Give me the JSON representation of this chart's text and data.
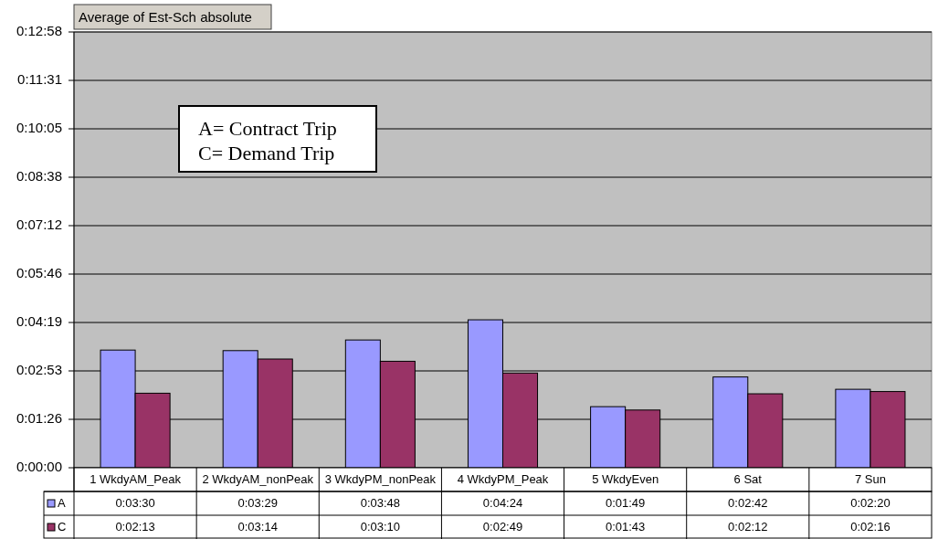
{
  "chart_data": {
    "type": "bar",
    "title": "Average of Est-Sch absolute",
    "categories": [
      "1 WkdyAM_Peak",
      "2 WkdyAM_nonPeak",
      "3 WkdyPM_nonPeak",
      "4 WkdyPM_Peak",
      "5 WkdyEven",
      "6 Sat",
      "7 Sun"
    ],
    "series": [
      {
        "name": "A",
        "color": "#9999ff",
        "values": [
          210,
          209,
          228,
          264,
          109,
          162,
          140
        ],
        "value_labels": [
          "0:03:30",
          "0:03:29",
          "0:03:48",
          "0:04:24",
          "0:01:49",
          "0:02:42",
          "0:02:20"
        ]
      },
      {
        "name": "C",
        "color": "#993366",
        "values": [
          133,
          194,
          190,
          169,
          103,
          132,
          136
        ],
        "value_labels": [
          "0:02:13",
          "0:03:14",
          "0:03:10",
          "0:02:49",
          "0:01:43",
          "0:02:12",
          "0:02:16"
        ]
      }
    ],
    "ylim": [
      0,
      777.6
    ],
    "yticks": [
      {
        "value": 0,
        "label": "0:00:00"
      },
      {
        "value": 86.4,
        "label": "0:01:26"
      },
      {
        "value": 172.8,
        "label": "0:02:53"
      },
      {
        "value": 259.2,
        "label": "0:04:19"
      },
      {
        "value": 345.6,
        "label": "0:05:46"
      },
      {
        "value": 432,
        "label": "0:07:12"
      },
      {
        "value": 518.4,
        "label": "0:08:38"
      },
      {
        "value": 604.8,
        "label": "0:10:05"
      },
      {
        "value": 691.2,
        "label": "0:11:31"
      },
      {
        "value": 777.6,
        "label": "0:12:58"
      }
    ],
    "grid": "y",
    "legend": "bottom",
    "annotations": [
      "A= Contract Trip",
      "C= Demand Trip"
    ]
  }
}
